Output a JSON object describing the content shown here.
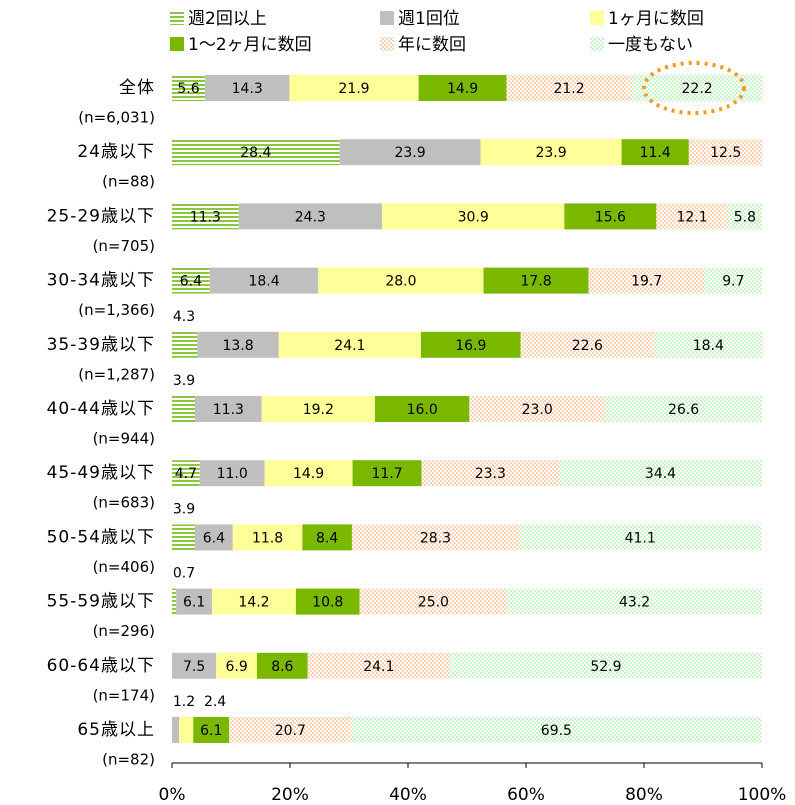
{
  "chart_data": {
    "type": "stacked-bar-horizontal",
    "categories": [
      "全体",
      "24歳以下",
      "25-29歳以下",
      "30-34歳以下",
      "35-39歳以下",
      "40-44歳以下",
      "45-49歳以下",
      "50-54歳以下",
      "55-59歳以下",
      "60-64歳以下",
      "65歳以上"
    ],
    "sample_sizes": [
      "(n=6,031)",
      "(n=88)",
      "(n=705)",
      "(n=1,366)",
      "(n=1,287)",
      "(n=944)",
      "(n=683)",
      "(n=406)",
      "(n=296)",
      "(n=174)",
      "(n=82)"
    ],
    "series": [
      {
        "name": "週2回以上",
        "color": "#8cc63f",
        "values": [
          5.6,
          28.4,
          11.3,
          6.4,
          4.3,
          3.9,
          4.7,
          3.9,
          0.7,
          null,
          null
        ],
        "value_labels": [
          "5.6",
          "28.4",
          "11.3",
          "6.4",
          "4.3",
          "3.9",
          "4.7",
          "3.9",
          "0.7",
          null,
          null
        ]
      },
      {
        "name": "週1回位",
        "color": "#bfbfbf",
        "values": [
          14.3,
          23.9,
          24.3,
          18.4,
          13.8,
          11.3,
          11.0,
          6.4,
          6.1,
          7.5,
          1.2
        ],
        "value_labels": [
          "14.3",
          "23.9",
          "24.3",
          "18.4",
          "13.8",
          "11.3",
          "11.0",
          "6.4",
          "6.1",
          "7.5",
          "1.2"
        ]
      },
      {
        "name": "1ヶ月に数回",
        "color": "#ffff99",
        "values": [
          21.9,
          23.9,
          30.9,
          28.0,
          24.1,
          19.2,
          14.9,
          11.8,
          14.2,
          6.9,
          2.4
        ],
        "value_labels": [
          "21.9",
          "23.9",
          "30.9",
          "28.0",
          "24.1",
          "19.2",
          "14.9",
          "11.8",
          "14.2",
          "6.9",
          "2.4"
        ]
      },
      {
        "name": "1～2ヶ月に数回",
        "color": "#7ab800",
        "values": [
          14.9,
          11.4,
          15.6,
          17.8,
          16.9,
          16.0,
          11.7,
          8.4,
          10.8,
          8.6,
          6.1
        ],
        "value_labels": [
          "14.9",
          "11.4",
          "15.6",
          "17.8",
          "16.9",
          "16.0",
          "11.7",
          "8.4",
          "10.8",
          "8.6",
          "6.1"
        ]
      },
      {
        "name": "年に数回",
        "color": "#fcd5b8",
        "values": [
          21.2,
          12.5,
          12.1,
          19.7,
          22.6,
          23.0,
          23.3,
          28.3,
          25.0,
          24.1,
          20.7
        ],
        "value_labels": [
          "21.2",
          "12.5",
          "12.1",
          "19.7",
          "22.6",
          "23.0",
          "23.3",
          "28.3",
          "25.0",
          "24.1",
          "20.7"
        ]
      },
      {
        "name": "一度もない",
        "color": "#ccf5cc",
        "values": [
          22.2,
          null,
          5.8,
          9.7,
          18.4,
          26.6,
          34.4,
          41.1,
          43.2,
          52.9,
          69.5
        ],
        "value_labels": [
          "22.2",
          null,
          "5.8",
          "9.7",
          "18.4",
          "26.6",
          "34.4",
          "41.1",
          "43.2",
          "52.9",
          "69.5"
        ]
      }
    ],
    "xlim": [
      0,
      100
    ],
    "xticks": [
      {
        "value": 0,
        "label": "0%"
      },
      {
        "value": 20,
        "label": "20%"
      },
      {
        "value": 40,
        "label": "40%"
      },
      {
        "value": 60,
        "label": "60%"
      },
      {
        "value": 80,
        "label": "80%"
      },
      {
        "value": 100,
        "label": "100%"
      }
    ]
  }
}
